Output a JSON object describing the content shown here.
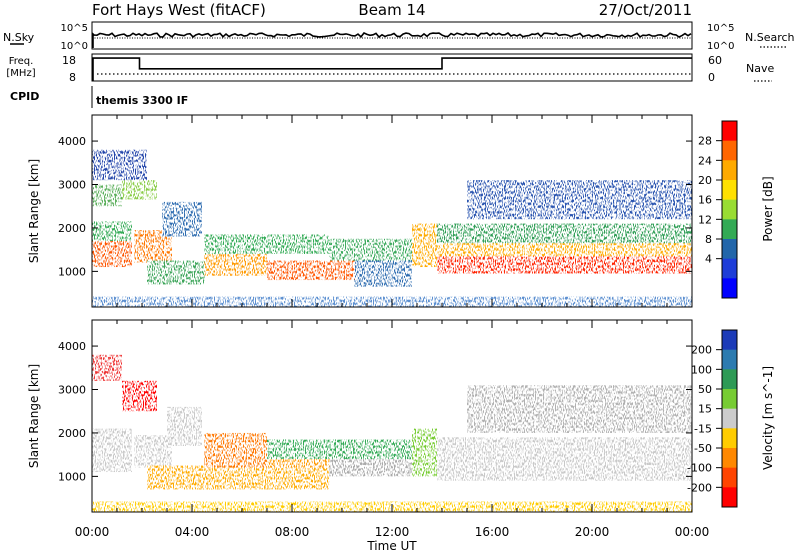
{
  "header": {
    "station": "Fort Hays West (fitACF)",
    "beam": "Beam 14",
    "date": "27/Oct/2011"
  },
  "strip_labels": {
    "nsky": "N.Sky",
    "nsky_ticks": [
      "10^5",
      "10^0"
    ],
    "nsearch": "N.Search",
    "nsearch_ticks": [
      "10^5",
      "10^0"
    ],
    "freq_l1": "Freq.",
    "freq_l2": "[MHz]",
    "freq_ticks": [
      "18",
      "8"
    ],
    "nave": "Nave",
    "nave_ticks": [
      "60",
      "0"
    ],
    "cpid": "CPID",
    "cpid_value": "themis 3300 IF"
  },
  "chart_data": [
    {
      "type": "heatmap",
      "name": "power",
      "ylabel": "Slant Range [km]",
      "ylim": [
        180,
        4600
      ],
      "yticks": [
        1000,
        2000,
        3000,
        4000
      ],
      "colorbar": {
        "label": "Power [dB]",
        "ticks": [
          "28",
          "24",
          "20",
          "16",
          "12",
          "8",
          "4"
        ],
        "colors": [
          "#ff0000",
          "#ff6600",
          "#ffaa00",
          "#ffe000",
          "#99dd33",
          "#33aa55",
          "#2266aa",
          "#1e3dd8",
          "#0000ff"
        ]
      },
      "bands": [
        {
          "t0": 0.0,
          "t1": 1.6,
          "r0": 1100,
          "r1": 1700,
          "color": "#ff5500"
        },
        {
          "t0": 0.0,
          "t1": 1.6,
          "r0": 1700,
          "r1": 2150,
          "color": "#33aa55"
        },
        {
          "t0": 0.0,
          "t1": 1.2,
          "r0": 2500,
          "r1": 3000,
          "color": "#5aae5a"
        },
        {
          "t0": 1.2,
          "t1": 2.6,
          "r0": 2650,
          "r1": 3100,
          "color": "#88cc44"
        },
        {
          "t0": 0.0,
          "t1": 2.2,
          "r0": 3100,
          "r1": 3800,
          "color": "#2244aa"
        },
        {
          "t0": 1.7,
          "t1": 3.2,
          "r0": 1200,
          "r1": 1950,
          "color": "#ff7700"
        },
        {
          "t0": 2.8,
          "t1": 4.4,
          "r0": 1800,
          "r1": 2600,
          "color": "#2d6cb0"
        },
        {
          "t0": 2.2,
          "t1": 4.5,
          "r0": 700,
          "r1": 1250,
          "color": "#3da55a"
        },
        {
          "t0": 4.5,
          "t1": 7.0,
          "r0": 900,
          "r1": 1400,
          "color": "#ff9900"
        },
        {
          "t0": 4.5,
          "t1": 9.5,
          "r0": 1400,
          "r1": 1850,
          "color": "#33aa55"
        },
        {
          "t0": 7.0,
          "t1": 10.5,
          "r0": 800,
          "r1": 1250,
          "color": "#ff5500"
        },
        {
          "t0": 9.5,
          "t1": 12.8,
          "r0": 1250,
          "r1": 1750,
          "color": "#3aa95c"
        },
        {
          "t0": 10.5,
          "t1": 12.8,
          "r0": 650,
          "r1": 1250,
          "color": "#2d6cb0"
        },
        {
          "t0": 12.8,
          "t1": 13.8,
          "r0": 1100,
          "r1": 2100,
          "color": "#ffaa00"
        },
        {
          "t0": 13.8,
          "t1": 24.0,
          "r0": 950,
          "r1": 1350,
          "color": "#ff2200"
        },
        {
          "t0": 13.8,
          "t1": 24.0,
          "r0": 1350,
          "r1": 1650,
          "color": "#ffaa00"
        },
        {
          "t0": 13.8,
          "t1": 24.0,
          "r0": 1650,
          "r1": 2100,
          "color": "#2f9e55"
        },
        {
          "t0": 15.0,
          "t1": 24.0,
          "r0": 2200,
          "r1": 3100,
          "color": "#2a55b0"
        },
        {
          "t0": 0.0,
          "t1": 24.0,
          "r0": 180,
          "r1": 420,
          "color": "#5b8fd0"
        }
      ]
    },
    {
      "type": "heatmap",
      "name": "velocity",
      "ylabel": "Slant Range [km]",
      "ylim": [
        180,
        4600
      ],
      "yticks": [
        1000,
        2000,
        3000,
        4000
      ],
      "colorbar": {
        "label": "Velocity [m s^-1]",
        "ticks": [
          "200",
          "100",
          "50",
          "15",
          "-15",
          "-50",
          "-100",
          "-200"
        ],
        "colors": [
          "#1c3bb8",
          "#2c7bb0",
          "#2e9a55",
          "#77cc33",
          "#cccccc",
          "#ffcc00",
          "#ff8800",
          "#ff4400",
          "#ff0000"
        ]
      },
      "bands": [
        {
          "t0": 0.0,
          "t1": 1.6,
          "r0": 1100,
          "r1": 2100,
          "color": "#c8c8c8"
        },
        {
          "t0": 0.0,
          "t1": 1.2,
          "r0": 3200,
          "r1": 3800,
          "color": "#ee3333"
        },
        {
          "t0": 1.2,
          "t1": 2.6,
          "r0": 2500,
          "r1": 3200,
          "color": "#ff0000"
        },
        {
          "t0": 1.7,
          "t1": 3.2,
          "r0": 1200,
          "r1": 1950,
          "color": "#c8c8c8"
        },
        {
          "t0": 3.0,
          "t1": 4.4,
          "r0": 1700,
          "r1": 2600,
          "color": "#c8c8c8"
        },
        {
          "t0": 2.2,
          "t1": 4.5,
          "r0": 700,
          "r1": 1250,
          "color": "#ffaa00"
        },
        {
          "t0": 4.5,
          "t1": 7.0,
          "r0": 1200,
          "r1": 2000,
          "color": "#ff7700"
        },
        {
          "t0": 4.5,
          "t1": 9.5,
          "r0": 700,
          "r1": 1200,
          "color": "#ffaa00"
        },
        {
          "t0": 7.0,
          "t1": 9.5,
          "r0": 1200,
          "r1": 1700,
          "color": "#ff9900"
        },
        {
          "t0": 7.0,
          "t1": 12.8,
          "r0": 1400,
          "r1": 1850,
          "color": "#33aa55"
        },
        {
          "t0": 9.5,
          "t1": 12.8,
          "r0": 1000,
          "r1": 1400,
          "color": "#aaaaaa"
        },
        {
          "t0": 12.8,
          "t1": 13.8,
          "r0": 1000,
          "r1": 2100,
          "color": "#77cc33"
        },
        {
          "t0": 13.8,
          "t1": 24.0,
          "r0": 900,
          "r1": 1900,
          "color": "#c8c8c8"
        },
        {
          "t0": 15.0,
          "t1": 24.0,
          "r0": 2000,
          "r1": 3100,
          "color": "#b0b0b0"
        },
        {
          "t0": 0.0,
          "t1": 24.0,
          "r0": 180,
          "r1": 420,
          "color": "#ffcc00"
        }
      ]
    }
  ],
  "time_axis": {
    "label": "Time UT",
    "ticks": [
      "00:00",
      "04:00",
      "08:00",
      "12:00",
      "16:00",
      "20:00",
      "00:00"
    ],
    "range_hours": [
      0,
      24
    ]
  },
  "frequency": [
    {
      "t0": 0.0,
      "t1": 1.9,
      "mhz": 16.5
    },
    {
      "t0": 1.9,
      "t1": 14.0,
      "mhz": 12.5
    },
    {
      "t0": 14.0,
      "t1": 24.0,
      "mhz": 16.5
    }
  ]
}
